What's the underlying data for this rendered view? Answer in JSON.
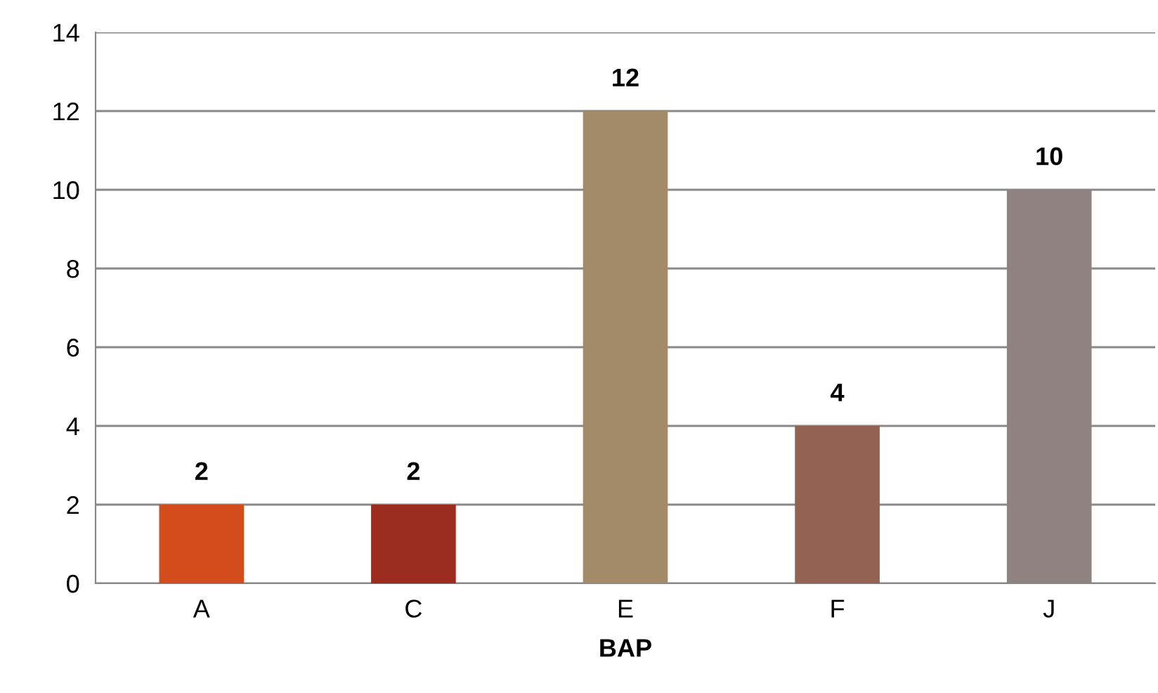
{
  "chart_data": {
    "type": "bar",
    "xlabel": "BAP",
    "categories": [
      "A",
      "C",
      "E",
      "F",
      "J"
    ],
    "values": [
      2,
      2,
      12,
      4,
      10
    ],
    "colors": [
      "#d34c1b",
      "#9c2c20",
      "#a38b69",
      "#946250",
      "#8f8280"
    ],
    "ylim": [
      0,
      14
    ],
    "yticks": [
      0,
      2,
      4,
      6,
      8,
      10,
      12,
      14
    ],
    "grid": "y",
    "data_labels": true
  }
}
